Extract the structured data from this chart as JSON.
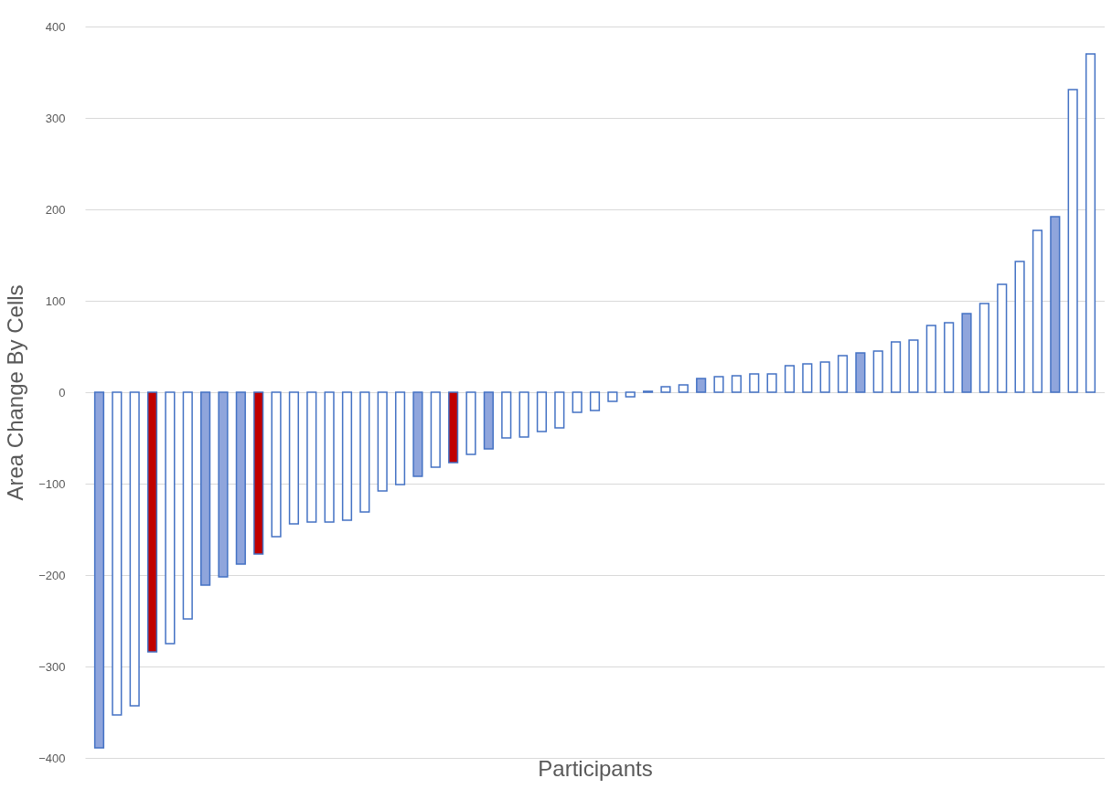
{
  "chart_data": {
    "type": "bar",
    "xlabel": "Participants",
    "ylabel": "Area Change By Cells",
    "categories": [
      null,
      null,
      null,
      null,
      null,
      null,
      null,
      null,
      null,
      null,
      null,
      null,
      null,
      null,
      null,
      null,
      null,
      null,
      null,
      null,
      null,
      null,
      null,
      null,
      null,
      null,
      null,
      null,
      null,
      null,
      null,
      null,
      null,
      null,
      null,
      null,
      null,
      null,
      null,
      null,
      null,
      null,
      null,
      null,
      null,
      null,
      null,
      null,
      null,
      null,
      null,
      null,
      null,
      null,
      null,
      null,
      null
    ],
    "values": [
      -389,
      -353,
      -343,
      -284,
      -275,
      -248,
      -211,
      -202,
      -188,
      -177,
      -158,
      -144,
      -142,
      -142,
      -140,
      -131,
      -108,
      -101,
      -92,
      -82,
      -77,
      -68,
      -62,
      -50,
      -49,
      -43,
      -39,
      -22,
      -20,
      -10,
      -5,
      1,
      6,
      8,
      15,
      17,
      18,
      20,
      20,
      29,
      31,
      33,
      40,
      43,
      45,
      55,
      57,
      73,
      76,
      86,
      97,
      118,
      143,
      177,
      192,
      331,
      370
    ],
    "colors": [
      "#8fa5dc",
      "#ffffff",
      "#ffffff",
      "#c00000",
      "#ffffff",
      "#ffffff",
      "#8fa5dc",
      "#8fa5dc",
      "#8fa5dc",
      "#c00000",
      "#ffffff",
      "#ffffff",
      "#ffffff",
      "#ffffff",
      "#ffffff",
      "#ffffff",
      "#ffffff",
      "#ffffff",
      "#8fa5dc",
      "#ffffff",
      "#c00000",
      "#ffffff",
      "#8fa5dc",
      "#ffffff",
      "#ffffff",
      "#ffffff",
      "#ffffff",
      "#ffffff",
      "#ffffff",
      "#ffffff",
      "#ffffff",
      "#ffffff",
      "#ffffff",
      "#ffffff",
      "#8fa5dc",
      "#ffffff",
      "#ffffff",
      "#ffffff",
      "#ffffff",
      "#ffffff",
      "#ffffff",
      "#ffffff",
      "#ffffff",
      "#8fa5dc",
      "#ffffff",
      "#ffffff",
      "#ffffff",
      "#ffffff",
      "#ffffff",
      "#8fa5dc",
      "#ffffff",
      "#ffffff",
      "#ffffff",
      "#ffffff",
      "#8fa5dc",
      "#ffffff",
      "#ffffff"
    ],
    "ylim": [
      -400,
      400
    ],
    "yticks": [
      -400,
      -300,
      -200,
      -100,
      0,
      100,
      200,
      300,
      400
    ],
    "grid": "y",
    "tick_labels": "y"
  }
}
